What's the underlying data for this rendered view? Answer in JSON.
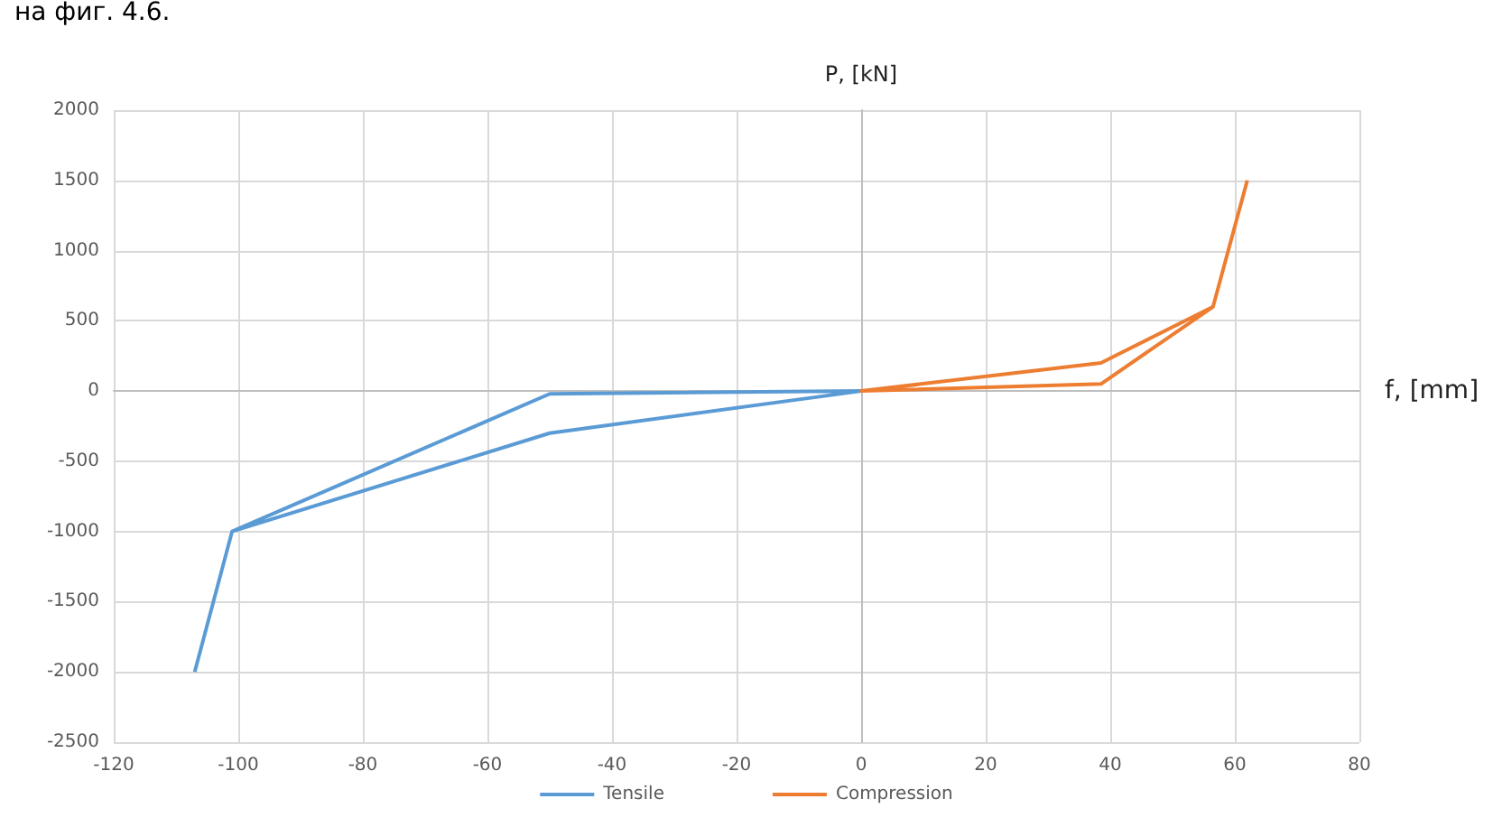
{
  "chart_data": {
    "type": "line",
    "xlabel": "f, [mm]",
    "ylabel": "P, [kN]",
    "annotations": [
      "на фиг. 4.6."
    ],
    "series": [
      {
        "name": "Tensile",
        "color": "#5b9bd5",
        "x": [
          -107,
          -101,
          -50,
          0,
          -50,
          -101
        ],
        "values": [
          -2000,
          -1000,
          -20,
          0,
          -300,
          -1000
        ]
      },
      {
        "name": "Compression",
        "color": "#ed7d31",
        "x": [
          62,
          56.5,
          38.5,
          0,
          38.5,
          56.5
        ],
        "values": [
          1500,
          600,
          200,
          0,
          50,
          600
        ]
      }
    ],
    "xlim": [
      -120,
      80
    ],
    "xticks": [
      -120,
      -100,
      -80,
      -60,
      -40,
      -20,
      0,
      20,
      40,
      60,
      80
    ],
    "ylim": [
      -2500,
      2000
    ],
    "yticks": [
      -2500,
      -2000,
      -1500,
      -1000,
      -500,
      0,
      500,
      1000,
      1500,
      2000
    ],
    "grid": true,
    "legend": "bottom",
    "marker": "none",
    "line_style": "solid"
  }
}
